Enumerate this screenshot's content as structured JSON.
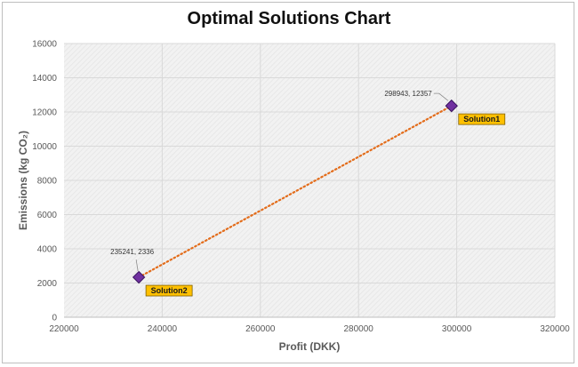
{
  "chart_data": {
    "type": "scatter",
    "title": "Optimal Solutions Chart",
    "xlabel": "Profit (DKK)",
    "ylabel": "Emissions (kg CO₂)",
    "xlim": [
      220000,
      320000
    ],
    "ylim": [
      0,
      16000
    ],
    "x_ticks": [
      220000,
      240000,
      260000,
      280000,
      300000,
      320000
    ],
    "y_ticks": [
      0,
      2000,
      4000,
      6000,
      8000,
      10000,
      12000,
      14000,
      16000
    ],
    "grid": true,
    "points": [
      {
        "name": "Solution1",
        "x": 298943,
        "y": 12357,
        "label": "298943, 12357"
      },
      {
        "name": "Solution2",
        "x": 235241,
        "y": 2336,
        "label": "235241, 2336"
      }
    ],
    "trendline": {
      "style": "dotted",
      "color": "#e36c1a"
    },
    "marker_color": "#7030a0",
    "tag_color": "#ffc000"
  }
}
